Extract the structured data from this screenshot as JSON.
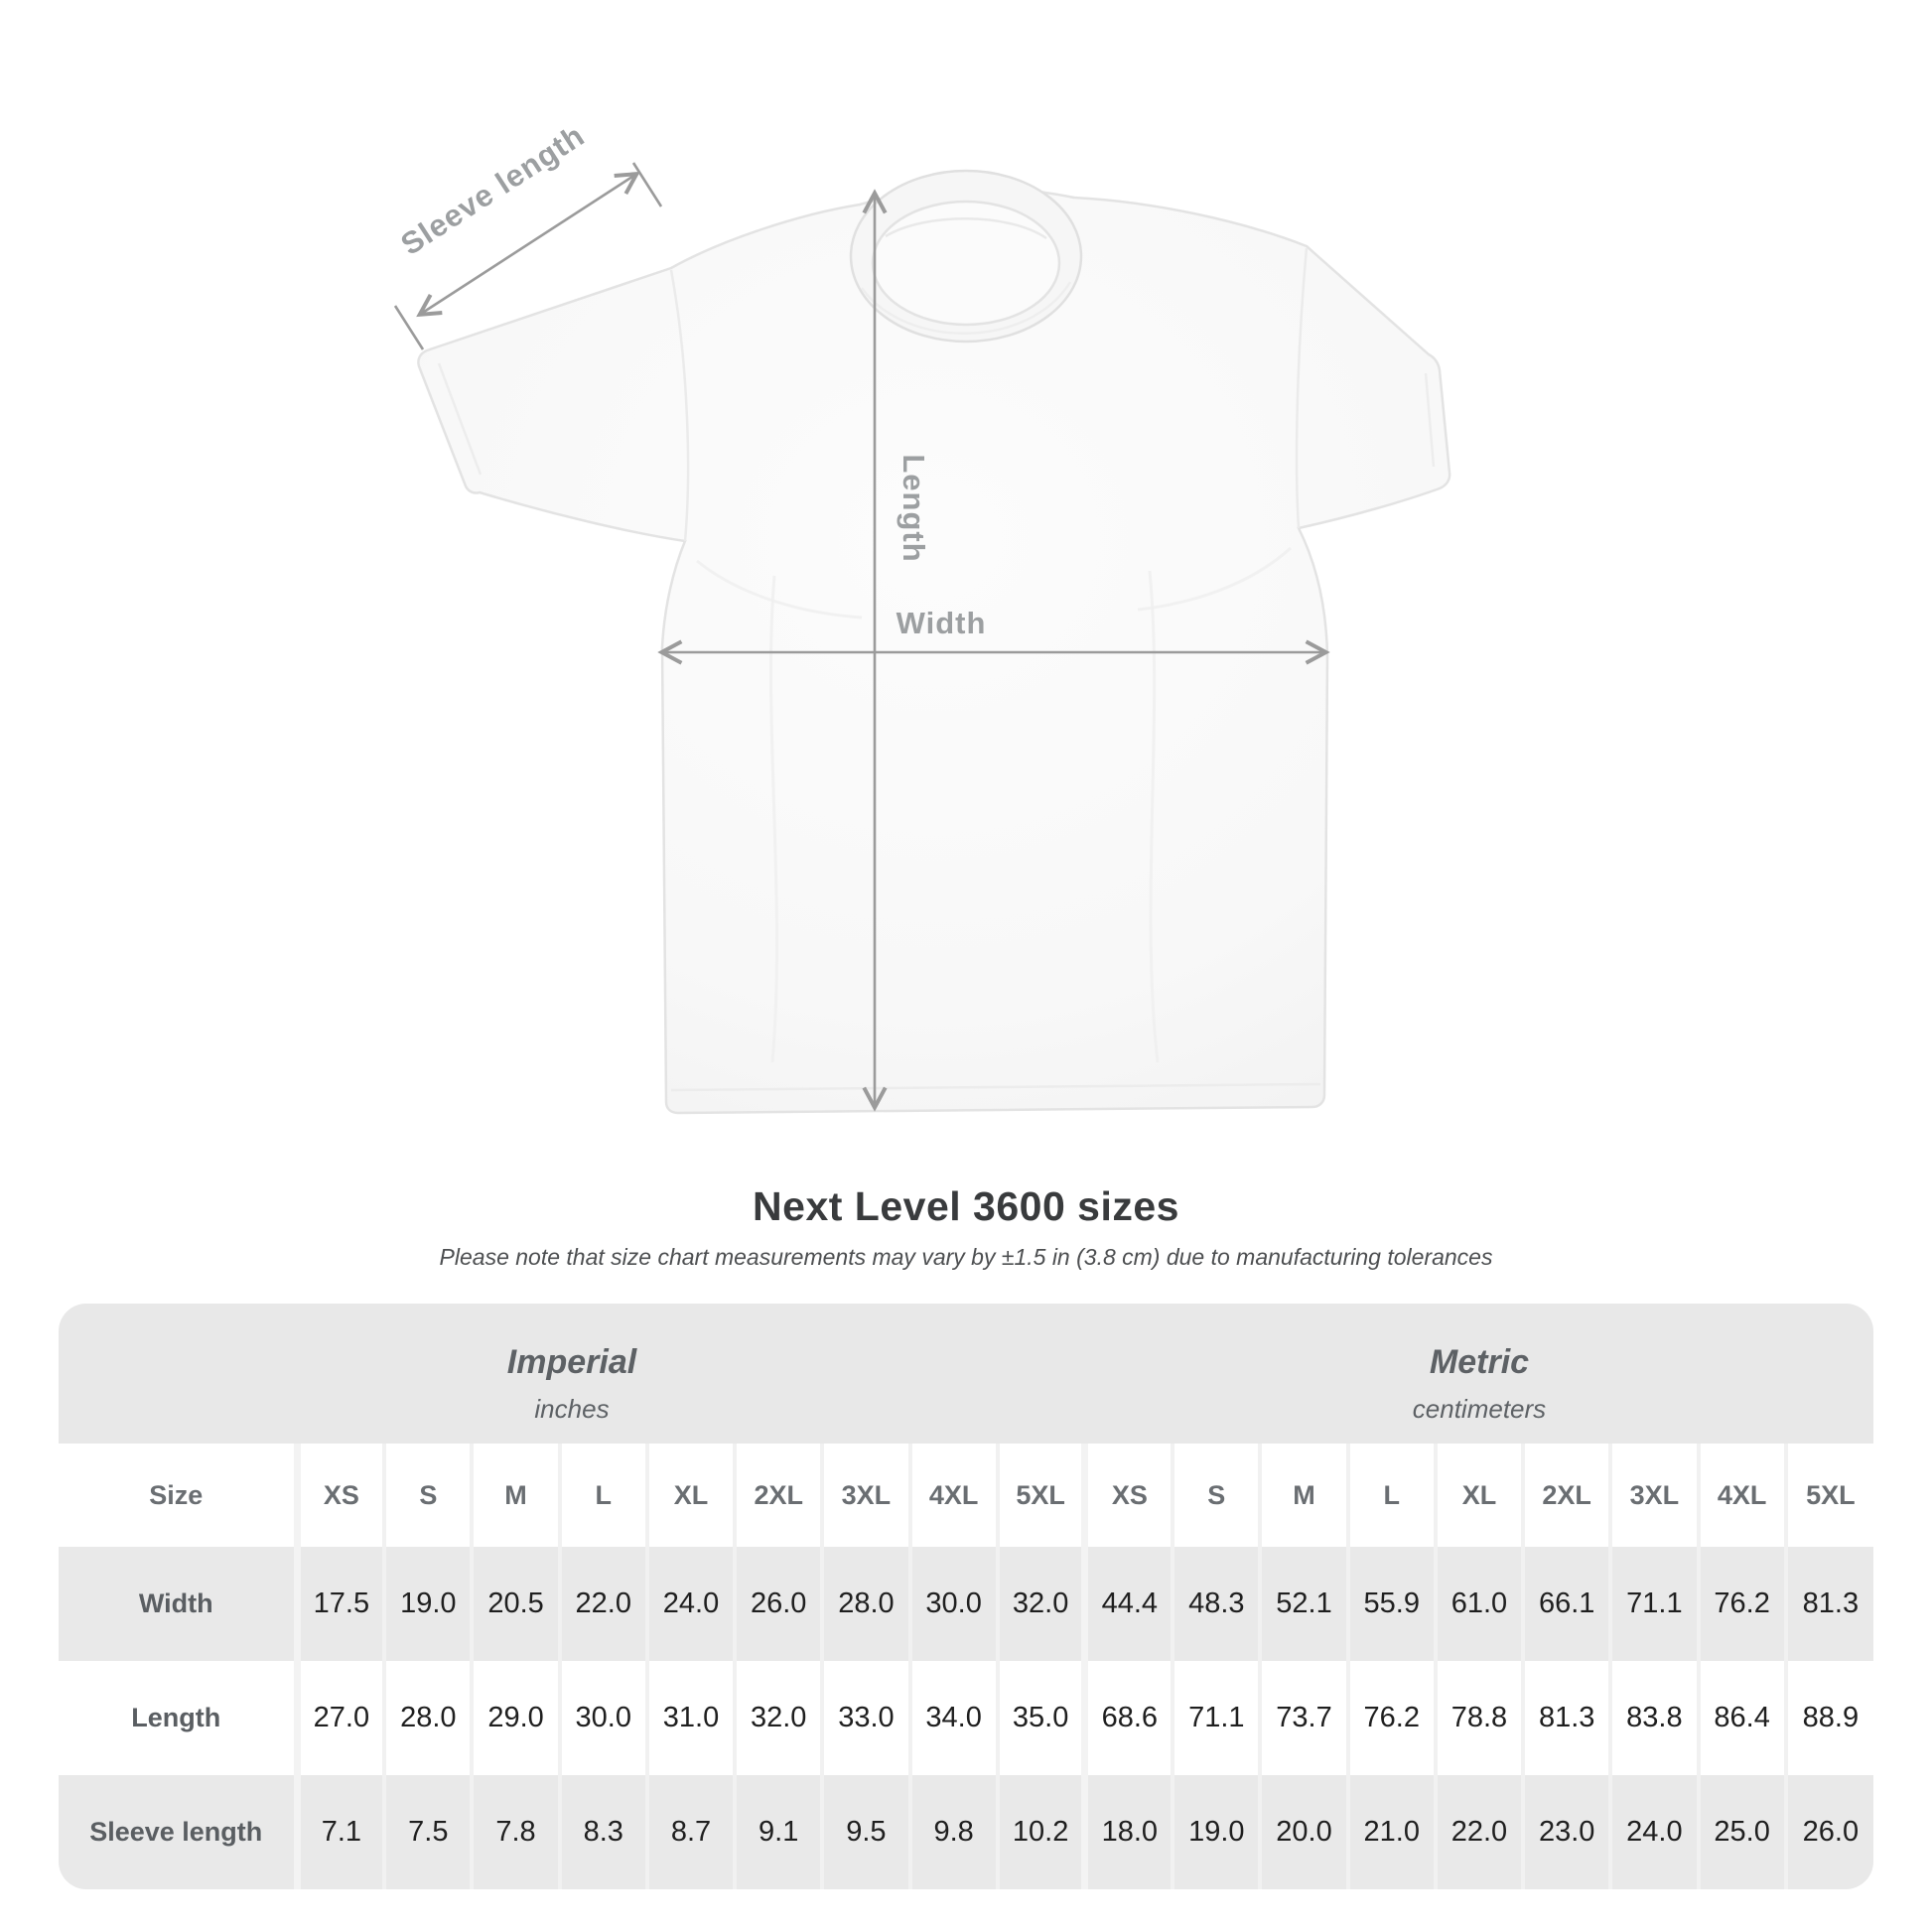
{
  "diagram": {
    "labels": {
      "sleeve_length": "Sleeve length",
      "length": "Length",
      "width": "Width"
    },
    "colors": {
      "arrow": "#9b9b9b",
      "shirt_fill": "#f8f8f8",
      "shirt_outline": "#e3e3e3"
    }
  },
  "heading": {
    "title": "Next Level 3600 sizes",
    "note": "Please note that size chart measurements may vary by ±1.5 in (3.8 cm) due to manufacturing tolerances"
  },
  "size_table": {
    "corner_label": "Size",
    "unit_groups": [
      {
        "label": "Imperial",
        "unit": "inches"
      },
      {
        "label": "Metric",
        "unit": "centimeters"
      }
    ],
    "column_headers": [
      "XS",
      "S",
      "M",
      "L",
      "XL",
      "2XL",
      "3XL",
      "4XL",
      "5XL",
      "XS",
      "S",
      "M",
      "L",
      "XL",
      "2XL",
      "3XL",
      "4XL",
      "5XL"
    ],
    "rows": [
      {
        "label": "Width",
        "values": [
          "17.5",
          "19.0",
          "20.5",
          "22.0",
          "24.0",
          "26.0",
          "28.0",
          "30.0",
          "32.0",
          "44.4",
          "48.3",
          "52.1",
          "55.9",
          "61.0",
          "66.1",
          "71.1",
          "76.2",
          "81.3"
        ]
      },
      {
        "label": "Length",
        "values": [
          "27.0",
          "28.0",
          "29.0",
          "30.0",
          "31.0",
          "32.0",
          "33.0",
          "34.0",
          "35.0",
          "68.6",
          "71.1",
          "73.7",
          "76.2",
          "78.8",
          "81.3",
          "83.8",
          "86.4",
          "88.9"
        ]
      },
      {
        "label": "Sleeve length",
        "values": [
          "7.1",
          "7.5",
          "7.8",
          "8.3",
          "8.7",
          "9.1",
          "9.5",
          "9.8",
          "10.2",
          "18.0",
          "19.0",
          "20.0",
          "21.0",
          "22.0",
          "23.0",
          "24.0",
          "25.0",
          "26.0"
        ]
      }
    ],
    "colors": {
      "band_gray": "#e8e8e8",
      "row_gray": "#e9e9e9",
      "gridline": "#f1f1f1",
      "header_text": "#6a6e72",
      "label_text": "#5a5e62",
      "value_text": "#1f1f1f"
    }
  }
}
